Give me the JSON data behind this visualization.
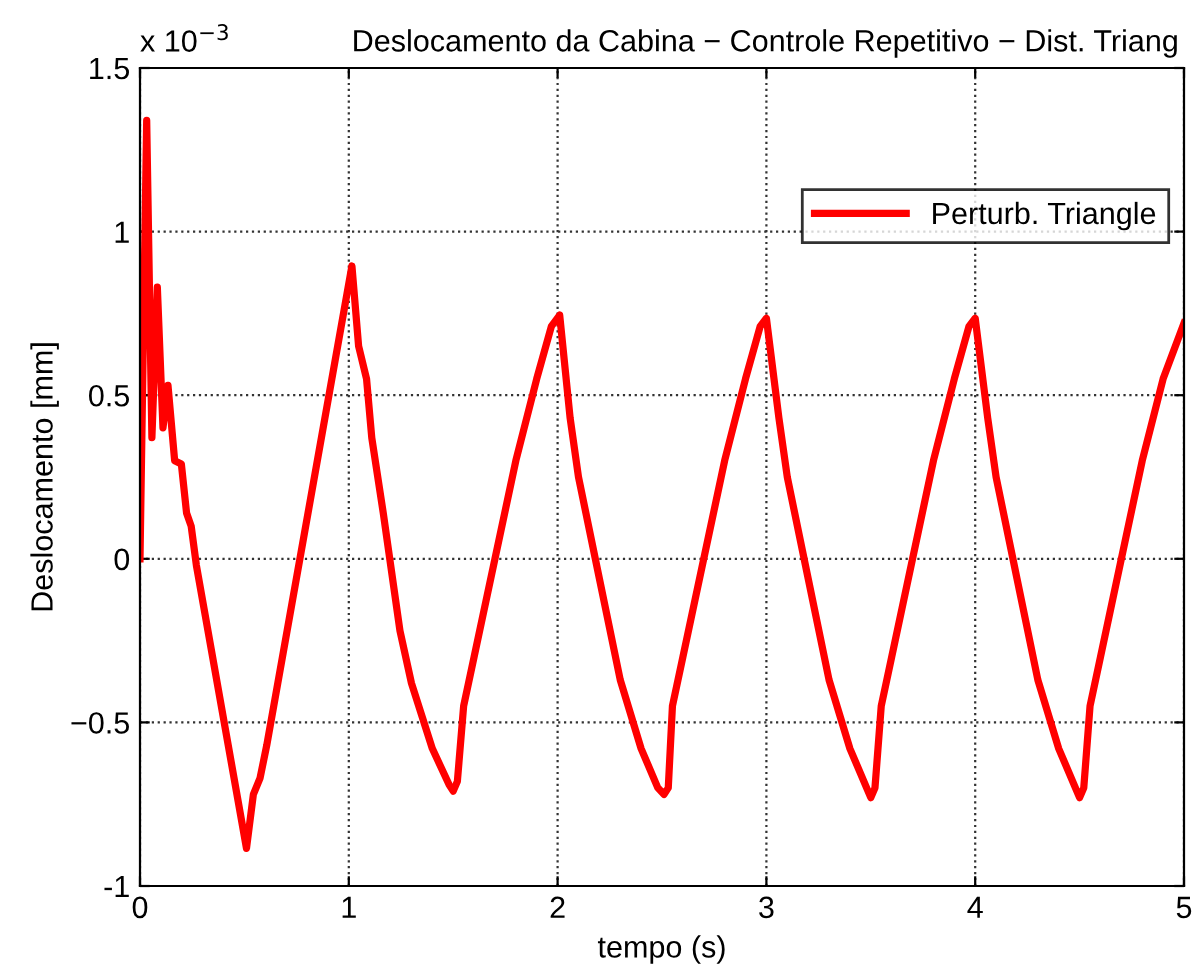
{
  "chart_data": {
    "type": "line",
    "title": "Deslocamento da Cabina − Controle Repetitivo − Dist. Triang",
    "xlabel": "tempo (s)",
    "ylabel": "Deslocamento [mm]",
    "annotations": [
      "x 10$^{−3}$"
    ],
    "xlim": [
      0,
      5
    ],
    "ylim": [
      -1,
      1.5
    ],
    "xticks": [
      0,
      1,
      2,
      3,
      4,
      5
    ],
    "yticks": [
      -1,
      {
        "value": -0.5,
        "label": "−0.5"
      },
      0,
      0.5,
      1,
      1.5
    ],
    "grid": true,
    "legend": "top right",
    "line_style": "solid",
    "marker": "none",
    "series": [
      {
        "name": "Perturb. Triangle",
        "color": "#ff0000",
        "x": [
          0,
          0.032,
          0.057,
          0.083,
          0.11,
          0.134,
          0.166,
          0.198,
          0.223,
          0.245,
          0.27,
          0.51,
          0.543,
          0.575,
          0.607,
          1.015,
          1.047,
          1.085,
          1.11,
          1.165,
          1.245,
          1.3,
          1.4,
          1.48,
          1.5,
          1.52,
          1.55,
          1.6,
          1.7,
          1.8,
          1.9,
          1.97,
          2.01,
          2.06,
          2.1,
          2.2,
          2.3,
          2.4,
          2.48,
          2.51,
          2.53,
          2.55,
          2.6,
          2.7,
          2.8,
          2.9,
          2.97,
          3.0,
          3.06,
          3.1,
          3.2,
          3.3,
          3.4,
          3.48,
          3.5,
          3.52,
          3.55,
          3.6,
          3.7,
          3.8,
          3.9,
          3.97,
          4.0,
          4.06,
          4.1,
          4.2,
          4.3,
          4.4,
          4.48,
          4.5,
          4.52,
          4.55,
          4.6,
          4.7,
          4.8,
          4.9,
          5.0
        ],
        "values": [
          0,
          1.34,
          0.37,
          0.83,
          0.4,
          0.53,
          0.3,
          0.29,
          0.14,
          0.1,
          -0.02,
          -0.885,
          -0.72,
          -0.67,
          -0.57,
          0.895,
          0.65,
          0.55,
          0.37,
          0.14,
          -0.22,
          -0.38,
          -0.58,
          -0.69,
          -0.71,
          -0.68,
          -0.45,
          -0.3,
          0.0,
          0.3,
          0.55,
          0.71,
          0.745,
          0.43,
          0.25,
          -0.06,
          -0.37,
          -0.58,
          -0.7,
          -0.72,
          -0.7,
          -0.45,
          -0.3,
          0.0,
          0.3,
          0.55,
          0.71,
          0.735,
          0.43,
          0.25,
          -0.06,
          -0.37,
          -0.58,
          -0.7,
          -0.73,
          -0.7,
          -0.45,
          -0.3,
          0.0,
          0.3,
          0.55,
          0.71,
          0.735,
          0.43,
          0.25,
          -0.06,
          -0.37,
          -0.58,
          -0.7,
          -0.73,
          -0.7,
          -0.45,
          -0.3,
          0.0,
          0.3,
          0.55,
          0.72
        ]
      }
    ]
  }
}
